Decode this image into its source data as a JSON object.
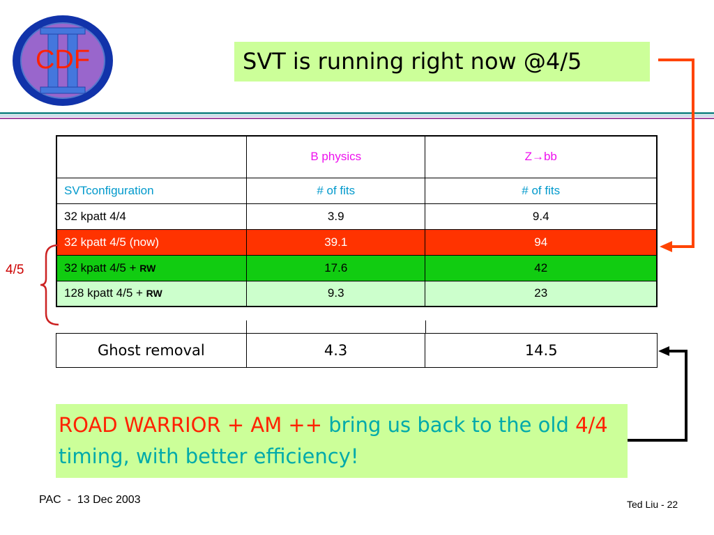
{
  "logo": {
    "text": "CDF",
    "numeral": "II"
  },
  "title": "SVT is running right now @4/5",
  "table": {
    "header": [
      "",
      "B physics",
      "Z→bb"
    ],
    "subheader": [
      "SVTconfiguration",
      "# of fits",
      "# of fits"
    ],
    "rows": [
      {
        "config": "32 kpatt 4/4",
        "suffix": "",
        "b_physics": "3.9",
        "zbb": "9.4"
      },
      {
        "config": "32 kpatt 4/5 (now)",
        "suffix": "",
        "b_physics": "39.1",
        "zbb": "94"
      },
      {
        "config": "32 kpatt 4/5 + ",
        "suffix": "RW",
        "b_physics": "17.6",
        "zbb": "42"
      },
      {
        "config": "128 kpatt 4/5 + ",
        "suffix": "RW",
        "b_physics": "9.3",
        "zbb": "23"
      }
    ]
  },
  "ghost": {
    "label": "Ghost removal",
    "b_physics": "4.3",
    "zbb": "14.5"
  },
  "side_label": "4/5",
  "conclusion": {
    "p1": "ROAD WARRIOR",
    "p2": " + ",
    "p3": "AM",
    "p4": " ++ ",
    "p5": " bring us back to the old ",
    "p6": "4/4",
    "p7": " timing, with better efficiency!"
  },
  "footer": {
    "left": "PAC  -  13 Dec 2003",
    "right": "Ted Liu - 22"
  },
  "colors": {
    "title_bg": "#ccff99",
    "row_red": "#ff3300",
    "row_green": "#11cc11",
    "row_lightgreen": "#ccffcc",
    "arrow_red": "#ff4400"
  }
}
